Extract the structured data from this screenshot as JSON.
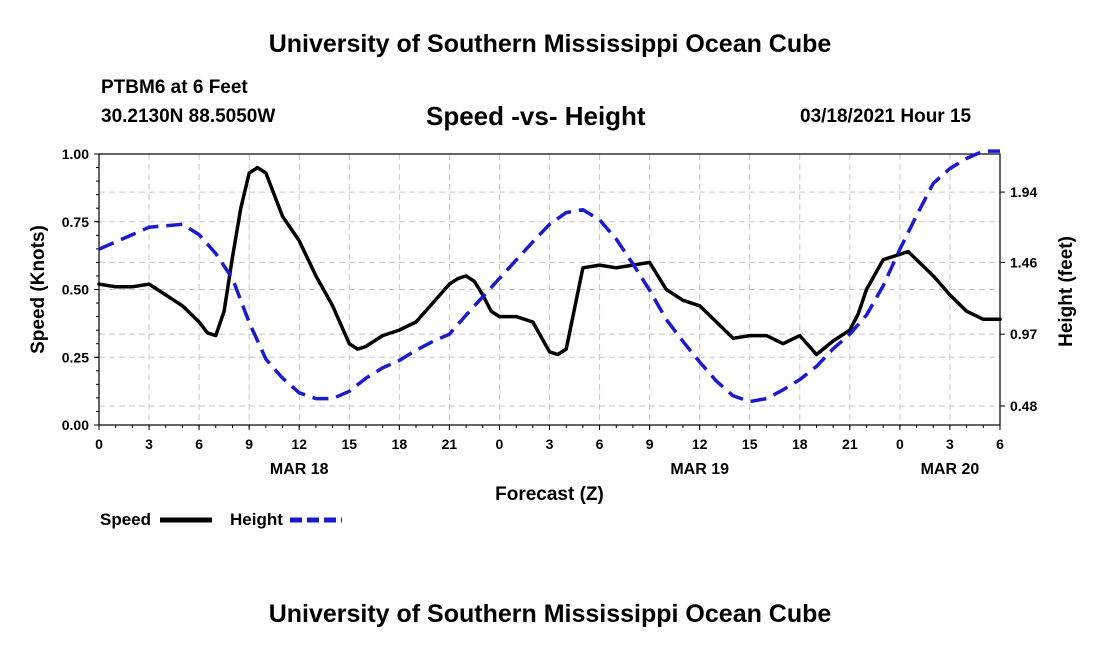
{
  "header": {
    "title": "University of Southern Mississippi Ocean Cube",
    "station": "PTBM6 at 6 Feet",
    "coords": "30.2130N 88.5050W",
    "plot_title": "Speed -vs- Height",
    "datetime": "03/18/2021 Hour 15"
  },
  "footer": {
    "title": "University of Southern Mississippi Ocean Cube"
  },
  "colors": {
    "speed": "#000000",
    "height": "#1a1ad0",
    "grid": "#c8c8c8"
  },
  "chart_data": {
    "type": "line",
    "title": "Speed -vs- Height",
    "xlabel": "Forecast (Z)",
    "ylabel_left": "Speed (Knots)",
    "ylabel_right": "Height (feet)",
    "xlim": [
      0,
      54
    ],
    "ylim_left": [
      0.0,
      1.0
    ],
    "ylim_right": [
      0.35,
      2.2
    ],
    "x_tick_values": [
      0,
      3,
      6,
      9,
      12,
      15,
      18,
      21,
      24,
      27,
      30,
      33,
      36,
      39,
      42,
      45,
      48,
      51,
      54
    ],
    "x_tick_labels": [
      "0",
      "3",
      "6",
      "9",
      "12",
      "15",
      "18",
      "21",
      "0",
      "3",
      "6",
      "9",
      "12",
      "15",
      "18",
      "21",
      "0",
      "3",
      "6"
    ],
    "y_left_ticks": [
      0.0,
      0.25,
      0.5,
      0.75,
      1.0
    ],
    "y_left_tick_labels": [
      "0.00",
      "0.25",
      "0.50",
      "0.75",
      "1.00"
    ],
    "y_right_ticks": [
      0.48,
      0.97,
      1.46,
      1.94
    ],
    "y_right_tick_labels": [
      "0.48",
      "0.97",
      "1.46",
      "1.94"
    ],
    "date_labels": [
      {
        "x": 12,
        "label": "MAR 18"
      },
      {
        "x": 36,
        "label": "MAR 19"
      },
      {
        "x": 51,
        "label": "MAR 20"
      }
    ],
    "grid": true,
    "legend": {
      "placement": "bottom-left"
    },
    "series": [
      {
        "name": "Speed",
        "axis": "left",
        "style": "solid",
        "x": [
          0,
          1,
          2,
          3,
          4,
          5,
          6,
          6.5,
          7,
          7.5,
          8,
          8.5,
          9,
          9.5,
          10,
          11,
          12,
          13,
          14,
          15,
          15.5,
          16,
          17,
          18,
          19,
          20,
          21,
          21.5,
          22,
          22.5,
          23,
          23.5,
          24,
          25,
          26,
          27,
          27.5,
          28,
          29,
          30,
          31,
          32,
          33,
          34,
          35,
          36,
          37,
          38,
          39,
          40,
          41,
          42,
          43,
          44,
          45,
          45.5,
          46,
          47,
          48,
          48.5,
          49,
          50,
          51,
          52,
          53,
          54
        ],
        "values": [
          0.52,
          0.51,
          0.51,
          0.52,
          0.48,
          0.44,
          0.38,
          0.34,
          0.33,
          0.42,
          0.62,
          0.8,
          0.93,
          0.95,
          0.93,
          0.77,
          0.68,
          0.55,
          0.44,
          0.3,
          0.28,
          0.29,
          0.33,
          0.35,
          0.38,
          0.45,
          0.52,
          0.54,
          0.55,
          0.53,
          0.48,
          0.42,
          0.4,
          0.4,
          0.38,
          0.27,
          0.26,
          0.28,
          0.58,
          0.59,
          0.58,
          0.59,
          0.6,
          0.5,
          0.46,
          0.44,
          0.38,
          0.32,
          0.33,
          0.33,
          0.3,
          0.33,
          0.26,
          0.31,
          0.35,
          0.41,
          0.5,
          0.61,
          0.63,
          0.64,
          0.61,
          0.55,
          0.48,
          0.42,
          0.39,
          0.39
        ]
      },
      {
        "name": "Height",
        "axis": "right",
        "style": "dashed",
        "x": [
          0,
          2,
          3,
          5,
          6,
          7,
          8,
          9,
          10,
          11,
          12,
          13,
          14,
          15,
          16,
          17,
          18,
          19,
          20,
          21,
          22,
          24,
          26,
          27,
          28,
          29,
          30,
          31,
          32,
          33,
          34,
          35,
          36,
          37,
          38,
          39,
          40,
          41,
          42,
          43,
          44,
          45,
          46,
          47,
          48,
          49,
          50,
          51,
          52,
          53,
          54
        ],
        "values": [
          1.55,
          1.65,
          1.7,
          1.72,
          1.65,
          1.52,
          1.35,
          1.05,
          0.8,
          0.67,
          0.57,
          0.53,
          0.53,
          0.58,
          0.67,
          0.74,
          0.79,
          0.86,
          0.92,
          0.97,
          1.1,
          1.35,
          1.6,
          1.72,
          1.8,
          1.82,
          1.75,
          1.62,
          1.45,
          1.27,
          1.07,
          0.92,
          0.78,
          0.65,
          0.55,
          0.51,
          0.53,
          0.59,
          0.66,
          0.75,
          0.87,
          0.97,
          1.1,
          1.3,
          1.55,
          1.78,
          2.0,
          2.1,
          2.17,
          2.22,
          2.22
        ]
      }
    ]
  }
}
